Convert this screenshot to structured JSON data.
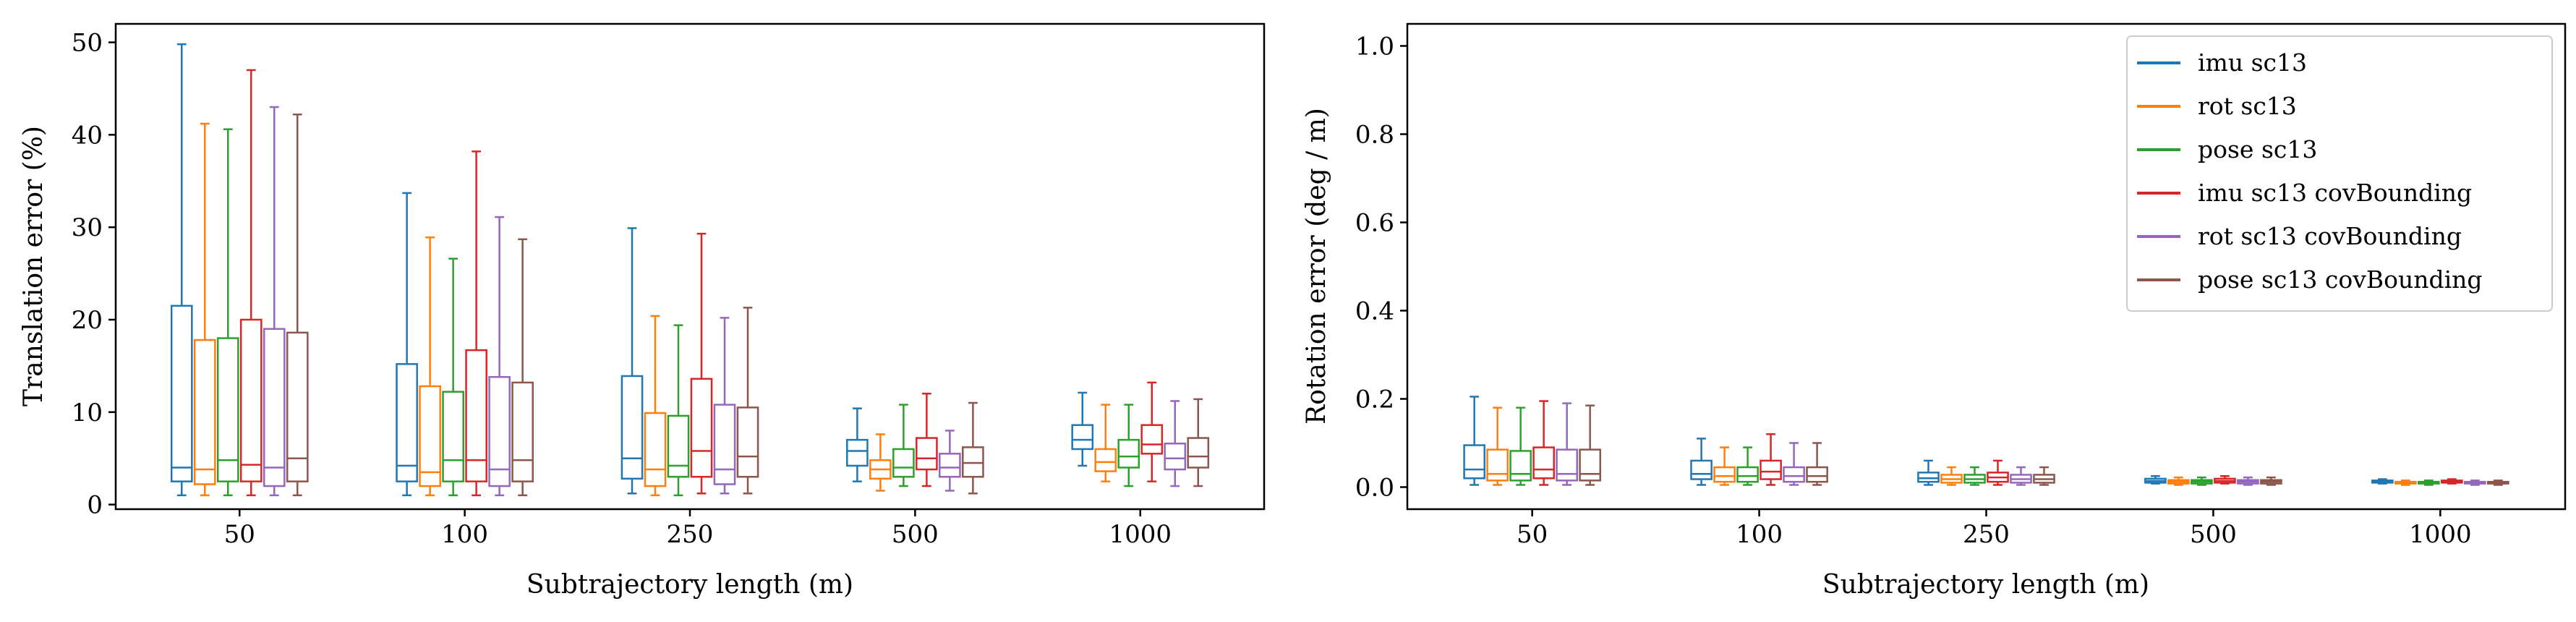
{
  "colors": [
    "#1f77b4",
    "#ff7f0e",
    "#2ca02c",
    "#d62728",
    "#9467bd",
    "#8c564b"
  ],
  "chart_data": [
    {
      "type": "box",
      "title": "",
      "xlabel": "Subtrajectory length (m)",
      "ylabel": "Translation error (%)",
      "categories": [
        "50",
        "100",
        "250",
        "500",
        "1000"
      ],
      "ylim": [
        -0.5,
        52
      ],
      "yticks": [
        0,
        10,
        20,
        30,
        40,
        50
      ],
      "legend": null,
      "series": [
        {
          "name": "imu sc13",
          "boxes": [
            {
              "min": 1.0,
              "q1": 2.5,
              "median": 4.0,
              "q3": 21.5,
              "max": 49.8
            },
            {
              "min": 1.0,
              "q1": 2.5,
              "median": 4.2,
              "q3": 15.2,
              "max": 33.7
            },
            {
              "min": 1.2,
              "q1": 2.8,
              "median": 5.0,
              "q3": 13.9,
              "max": 29.9
            },
            {
              "min": 2.5,
              "q1": 4.2,
              "median": 5.8,
              "q3": 7.0,
              "max": 10.4
            },
            {
              "min": 4.2,
              "q1": 6.0,
              "median": 7.0,
              "q3": 8.6,
              "max": 12.1
            }
          ]
        },
        {
          "name": "rot sc13",
          "boxes": [
            {
              "min": 1.0,
              "q1": 2.2,
              "median": 3.8,
              "q3": 17.8,
              "max": 41.2
            },
            {
              "min": 1.0,
              "q1": 2.0,
              "median": 3.5,
              "q3": 12.8,
              "max": 28.9
            },
            {
              "min": 1.0,
              "q1": 2.0,
              "median": 3.8,
              "q3": 9.9,
              "max": 20.4
            },
            {
              "min": 1.5,
              "q1": 2.8,
              "median": 3.8,
              "q3": 4.8,
              "max": 7.6
            },
            {
              "min": 2.5,
              "q1": 3.6,
              "median": 4.6,
              "q3": 6.0,
              "max": 10.8
            }
          ]
        },
        {
          "name": "pose sc13",
          "boxes": [
            {
              "min": 1.0,
              "q1": 2.5,
              "median": 4.8,
              "q3": 18.0,
              "max": 40.6
            },
            {
              "min": 1.0,
              "q1": 2.5,
              "median": 4.8,
              "q3": 12.2,
              "max": 26.6
            },
            {
              "min": 1.0,
              "q1": 3.0,
              "median": 4.2,
              "q3": 9.6,
              "max": 19.4
            },
            {
              "min": 2.0,
              "q1": 3.0,
              "median": 4.0,
              "q3": 6.0,
              "max": 10.8
            },
            {
              "min": 2.0,
              "q1": 4.0,
              "median": 5.2,
              "q3": 7.0,
              "max": 10.8
            }
          ]
        },
        {
          "name": "imu sc13 covBounding",
          "boxes": [
            {
              "min": 1.0,
              "q1": 2.5,
              "median": 4.3,
              "q3": 20.0,
              "max": 47.0
            },
            {
              "min": 1.0,
              "q1": 2.5,
              "median": 4.8,
              "q3": 16.7,
              "max": 38.2
            },
            {
              "min": 1.2,
              "q1": 3.0,
              "median": 5.8,
              "q3": 13.6,
              "max": 29.3
            },
            {
              "min": 2.0,
              "q1": 3.8,
              "median": 5.0,
              "q3": 7.2,
              "max": 12.0
            },
            {
              "min": 2.5,
              "q1": 5.5,
              "median": 6.5,
              "q3": 8.6,
              "max": 13.2
            }
          ]
        },
        {
          "name": "rot sc13 covBounding",
          "boxes": [
            {
              "min": 1.0,
              "q1": 2.0,
              "median": 4.0,
              "q3": 19.0,
              "max": 43.0
            },
            {
              "min": 1.0,
              "q1": 2.0,
              "median": 3.8,
              "q3": 13.8,
              "max": 31.1
            },
            {
              "min": 1.2,
              "q1": 2.2,
              "median": 3.8,
              "q3": 10.8,
              "max": 20.2
            },
            {
              "min": 1.5,
              "q1": 3.0,
              "median": 4.0,
              "q3": 5.5,
              "max": 8.0
            },
            {
              "min": 2.0,
              "q1": 3.8,
              "median": 5.0,
              "q3": 6.6,
              "max": 11.2
            }
          ]
        },
        {
          "name": "pose sc13 covBounding",
          "boxes": [
            {
              "min": 1.0,
              "q1": 2.5,
              "median": 5.0,
              "q3": 18.6,
              "max": 42.2
            },
            {
              "min": 1.0,
              "q1": 2.5,
              "median": 4.8,
              "q3": 13.2,
              "max": 28.7
            },
            {
              "min": 1.2,
              "q1": 3.0,
              "median": 5.2,
              "q3": 10.5,
              "max": 21.3
            },
            {
              "min": 1.2,
              "q1": 3.0,
              "median": 4.5,
              "q3": 6.2,
              "max": 11.0
            },
            {
              "min": 2.0,
              "q1": 4.0,
              "median": 5.2,
              "q3": 7.2,
              "max": 11.4
            }
          ]
        }
      ]
    },
    {
      "type": "box",
      "title": "",
      "xlabel": "Subtrajectory length (m)",
      "ylabel": "Rotation error (deg / m)",
      "categories": [
        "50",
        "100",
        "250",
        "500",
        "1000"
      ],
      "ylim": [
        -0.05,
        1.05
      ],
      "yticks": [
        0.0,
        0.2,
        0.4,
        0.6,
        0.8,
        1.0
      ],
      "legend": "top-right",
      "series": [
        {
          "name": "imu sc13",
          "boxes": [
            {
              "min": 0.005,
              "q1": 0.02,
              "median": 0.04,
              "q3": 0.095,
              "max": 0.205
            },
            {
              "min": 0.005,
              "q1": 0.018,
              "median": 0.03,
              "q3": 0.06,
              "max": 0.11
            },
            {
              "min": 0.005,
              "q1": 0.012,
              "median": 0.02,
              "q3": 0.033,
              "max": 0.06
            },
            {
              "min": 0.008,
              "q1": 0.01,
              "median": 0.014,
              "q3": 0.019,
              "max": 0.025
            },
            {
              "min": 0.008,
              "q1": 0.01,
              "median": 0.012,
              "q3": 0.015,
              "max": 0.018
            }
          ]
        },
        {
          "name": "rot sc13",
          "boxes": [
            {
              "min": 0.005,
              "q1": 0.015,
              "median": 0.03,
              "q3": 0.085,
              "max": 0.18
            },
            {
              "min": 0.005,
              "q1": 0.012,
              "median": 0.025,
              "q3": 0.045,
              "max": 0.09
            },
            {
              "min": 0.005,
              "q1": 0.01,
              "median": 0.018,
              "q3": 0.028,
              "max": 0.045
            },
            {
              "min": 0.005,
              "q1": 0.008,
              "median": 0.012,
              "q3": 0.016,
              "max": 0.022
            },
            {
              "min": 0.005,
              "q1": 0.008,
              "median": 0.01,
              "q3": 0.012,
              "max": 0.015
            }
          ]
        },
        {
          "name": "pose sc13",
          "boxes": [
            {
              "min": 0.005,
              "q1": 0.015,
              "median": 0.03,
              "q3": 0.082,
              "max": 0.18
            },
            {
              "min": 0.005,
              "q1": 0.012,
              "median": 0.025,
              "q3": 0.045,
              "max": 0.09
            },
            {
              "min": 0.005,
              "q1": 0.01,
              "median": 0.018,
              "q3": 0.028,
              "max": 0.045
            },
            {
              "min": 0.005,
              "q1": 0.008,
              "median": 0.012,
              "q3": 0.016,
              "max": 0.022
            },
            {
              "min": 0.005,
              "q1": 0.008,
              "median": 0.01,
              "q3": 0.012,
              "max": 0.015
            }
          ]
        },
        {
          "name": "imu sc13 covBounding",
          "boxes": [
            {
              "min": 0.005,
              "q1": 0.02,
              "median": 0.04,
              "q3": 0.09,
              "max": 0.195
            },
            {
              "min": 0.005,
              "q1": 0.018,
              "median": 0.035,
              "q3": 0.06,
              "max": 0.12
            },
            {
              "min": 0.005,
              "q1": 0.012,
              "median": 0.022,
              "q3": 0.033,
              "max": 0.06
            },
            {
              "min": 0.008,
              "q1": 0.01,
              "median": 0.014,
              "q3": 0.019,
              "max": 0.025
            },
            {
              "min": 0.008,
              "q1": 0.01,
              "median": 0.012,
              "q3": 0.015,
              "max": 0.018
            }
          ]
        },
        {
          "name": "rot sc13 covBounding",
          "boxes": [
            {
              "min": 0.005,
              "q1": 0.015,
              "median": 0.03,
              "q3": 0.085,
              "max": 0.19
            },
            {
              "min": 0.005,
              "q1": 0.012,
              "median": 0.025,
              "q3": 0.045,
              "max": 0.1
            },
            {
              "min": 0.005,
              "q1": 0.01,
              "median": 0.018,
              "q3": 0.028,
              "max": 0.045
            },
            {
              "min": 0.005,
              "q1": 0.008,
              "median": 0.012,
              "q3": 0.016,
              "max": 0.022
            },
            {
              "min": 0.005,
              "q1": 0.008,
              "median": 0.01,
              "q3": 0.012,
              "max": 0.015
            }
          ]
        },
        {
          "name": "pose sc13 covBounding",
          "boxes": [
            {
              "min": 0.005,
              "q1": 0.015,
              "median": 0.03,
              "q3": 0.085,
              "max": 0.185
            },
            {
              "min": 0.005,
              "q1": 0.012,
              "median": 0.025,
              "q3": 0.045,
              "max": 0.1
            },
            {
              "min": 0.005,
              "q1": 0.01,
              "median": 0.018,
              "q3": 0.028,
              "max": 0.045
            },
            {
              "min": 0.005,
              "q1": 0.008,
              "median": 0.012,
              "q3": 0.016,
              "max": 0.022
            },
            {
              "min": 0.005,
              "q1": 0.008,
              "median": 0.01,
              "q3": 0.012,
              "max": 0.015
            }
          ]
        }
      ]
    }
  ]
}
